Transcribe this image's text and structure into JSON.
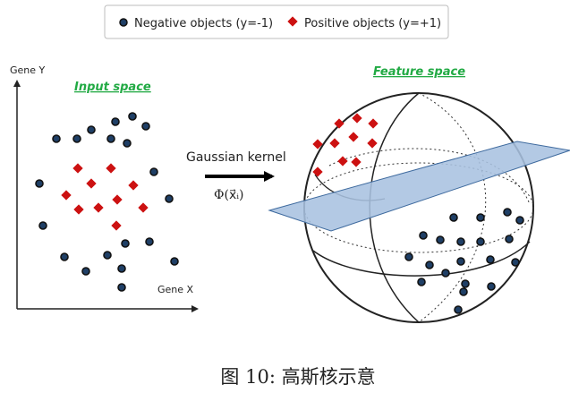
{
  "legend": {
    "negative_label": "Negative objects (y=-1)",
    "positive_label": "Positive objects (y=+1)"
  },
  "input_space": {
    "title": "Input space",
    "y_axis_label": "Gene Y",
    "x_axis_label": "Gene X"
  },
  "kernel": {
    "label": "Gaussian kernel",
    "formula": "Φ(x⃗ᵢ)"
  },
  "feature_space": {
    "title": "Feature space"
  },
  "caption": "图 10: 高斯核示意",
  "colors": {
    "negative_fill": "#1f3f66",
    "negative_stroke": "#111111",
    "positive_fill": "#cc1111",
    "section_title": "#22aa44",
    "plane_fill": "#a9c2e0",
    "plane_stroke": "#3e6a9e"
  }
}
